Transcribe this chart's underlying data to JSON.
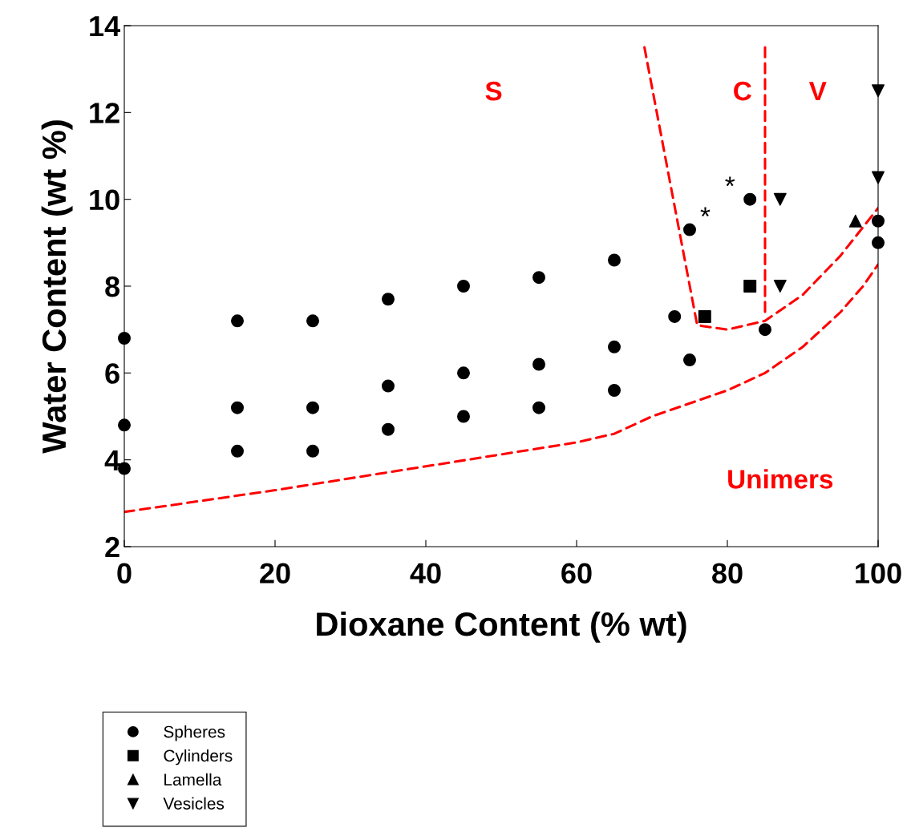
{
  "chart_data": {
    "type": "scatter",
    "xlabel": "Dioxane Content (% wt)",
    "ylabel": "Water Content (wt %)",
    "xlim": [
      0,
      100
    ],
    "ylim": [
      2,
      14
    ],
    "xticks": [
      0,
      20,
      40,
      60,
      80,
      100
    ],
    "yticks": [
      2,
      4,
      6,
      8,
      10,
      12,
      14
    ],
    "grid": false,
    "legend": "bottom left",
    "series": [
      {
        "name": "Spheres",
        "marker": "circle",
        "color": "#000000",
        "x": [
          0,
          0,
          0,
          15,
          15,
          15,
          25,
          25,
          25,
          35,
          35,
          35,
          45,
          45,
          45,
          55,
          55,
          55,
          65,
          65,
          65,
          73,
          75,
          75,
          83,
          85,
          100,
          100
        ],
        "values": [
          6.8,
          4.8,
          3.8,
          7.2,
          5.2,
          4.2,
          7.2,
          5.2,
          4.2,
          7.7,
          5.7,
          4.7,
          8.0,
          6.0,
          5.0,
          8.2,
          6.2,
          5.2,
          8.6,
          6.6,
          5.6,
          7.3,
          6.3,
          9.3,
          10.0,
          7.0,
          9.5,
          9.0
        ]
      },
      {
        "name": "Cylinders",
        "marker": "square",
        "color": "#000000",
        "x": [
          77,
          83
        ],
        "values": [
          7.3,
          8.0
        ]
      },
      {
        "name": "Lamella",
        "marker": "triangle",
        "color": "#000000",
        "x": [
          97
        ],
        "values": [
          9.5
        ]
      },
      {
        "name": "Vesicles",
        "marker": "triangle_down",
        "color": "#000000",
        "x": [
          87,
          87,
          100,
          100
        ],
        "values": [
          10.0,
          8.0,
          12.5,
          10.5
        ]
      },
      {
        "type": "line",
        "line_style": "dashed",
        "color": "#ff0000",
        "x": [
          0,
          20,
          40,
          60,
          65,
          70,
          80,
          85,
          90,
          95,
          98,
          100
        ],
        "values": [
          2.8,
          3.3,
          3.85,
          4.4,
          4.6,
          5.0,
          5.6,
          6.0,
          6.6,
          7.4,
          8.0,
          8.5
        ]
      },
      {
        "type": "line",
        "line_style": "dashed",
        "color": "#ff0000",
        "x": [
          69,
          76,
          80,
          85,
          90,
          95,
          100
        ],
        "values": [
          13.5,
          7.1,
          7.0,
          7.2,
          7.8,
          8.7,
          9.8
        ]
      },
      {
        "type": "line",
        "line_style": "dashed",
        "color": "#ff0000",
        "x": [
          85,
          85
        ],
        "values": [
          13.5,
          7.4
        ]
      }
    ],
    "annotations": [
      "S",
      "C",
      "V",
      "Unimers",
      {
        "text": "*",
        "x": 75,
        "y": 9.3
      },
      {
        "text": "*",
        "x": 83,
        "y": 10.0
      }
    ]
  }
}
